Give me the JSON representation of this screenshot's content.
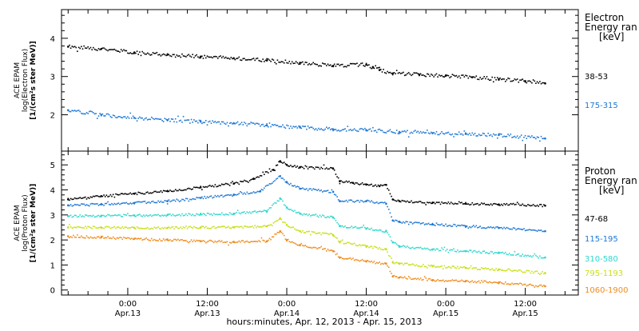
{
  "xaxis": {
    "title": "hours:minutes, Apr. 12, 2013 - Apr. 15, 2013",
    "ticks": [
      {
        "hour": 24,
        "time": "0:00",
        "date": "Apr.13"
      },
      {
        "hour": 36,
        "time": "12:00",
        "date": "Apr.13"
      },
      {
        "hour": 48,
        "time": "0:00",
        "date": "Apr.14"
      },
      {
        "hour": 60,
        "time": "12:00",
        "date": "Apr.14"
      },
      {
        "hour": 72,
        "time": "0:00",
        "date": "Apr.15"
      },
      {
        "hour": 84,
        "time": "12:00",
        "date": "Apr.15"
      }
    ]
  },
  "electron_panel": {
    "ylabel_lines": [
      "ACE EPAM",
      "log(Electron Flux)",
      "[1/(cm²s ster MeV)]"
    ],
    "legend_title_lines": [
      "Electron",
      "Energy ran",
      "[keV]"
    ],
    "yticks": [
      2,
      3,
      4
    ]
  },
  "proton_panel": {
    "ylabel_lines": [
      "ACE EPAM",
      "log(Proton Flux)",
      "[1/(cm²s ster MeV)]"
    ],
    "legend_title_lines": [
      "Proton",
      "Energy ran",
      "[keV]"
    ],
    "yticks": [
      0,
      1,
      2,
      3,
      4,
      5
    ]
  },
  "chart_data": [
    {
      "type": "scatter",
      "x_unit": "hours since Apr. 12, 2013 00:00",
      "xlim": [
        14,
        92
      ],
      "ylim": [
        1.05,
        4.75
      ],
      "series": [
        {
          "name": "38-53",
          "color": "#000000",
          "x": [
            15,
            20,
            25,
            30,
            35,
            40,
            45,
            50,
            55,
            60,
            61,
            62,
            64,
            68,
            72,
            76,
            80,
            84,
            87
          ],
          "y": [
            3.78,
            3.72,
            3.63,
            3.57,
            3.52,
            3.48,
            3.42,
            3.36,
            3.28,
            3.31,
            3.25,
            3.17,
            3.08,
            3.05,
            3.02,
            2.98,
            2.93,
            2.88,
            2.82
          ]
        },
        {
          "name": "175-315",
          "color": "#1f78d4",
          "x": [
            15,
            20,
            25,
            30,
            35,
            40,
            45,
            50,
            55,
            60,
            65,
            70,
            75,
            80,
            87
          ],
          "y": [
            2.12,
            2.0,
            1.92,
            1.86,
            1.82,
            1.78,
            1.72,
            1.67,
            1.62,
            1.6,
            1.55,
            1.52,
            1.5,
            1.47,
            1.38
          ]
        }
      ]
    },
    {
      "type": "scatter",
      "x_unit": "hours since Apr. 12, 2013 00:00",
      "xlim": [
        14,
        92
      ],
      "ylim": [
        -0.2,
        5.55
      ],
      "series": [
        {
          "name": "47-68",
          "color": "#000000",
          "x": [
            15,
            20,
            25,
            30,
            35,
            40,
            43,
            46,
            47,
            48,
            50,
            55,
            56,
            58,
            60,
            62,
            63,
            64,
            65,
            70,
            75,
            80,
            87
          ],
          "y": [
            3.62,
            3.75,
            3.85,
            3.95,
            4.1,
            4.25,
            4.45,
            4.8,
            5.15,
            5.0,
            4.9,
            4.85,
            4.35,
            4.28,
            4.22,
            4.15,
            4.2,
            3.62,
            3.55,
            3.48,
            3.45,
            3.42,
            3.37
          ]
        },
        {
          "name": "115-195",
          "color": "#1f78d4",
          "x": [
            15,
            20,
            25,
            30,
            35,
            40,
            44,
            47,
            48,
            50,
            55,
            56,
            60,
            63,
            64,
            65,
            70,
            75,
            80,
            87
          ],
          "y": [
            3.38,
            3.42,
            3.48,
            3.55,
            3.68,
            3.8,
            3.95,
            4.55,
            4.3,
            4.05,
            3.92,
            3.55,
            3.55,
            3.45,
            2.78,
            2.72,
            2.62,
            2.55,
            2.48,
            2.35
          ]
        },
        {
          "name": "310-580",
          "color": "#30d8cc",
          "x": [
            15,
            20,
            25,
            30,
            35,
            40,
            45,
            47,
            48,
            50,
            55,
            56,
            60,
            63,
            64,
            65,
            70,
            75,
            80,
            87
          ],
          "y": [
            2.95,
            2.97,
            2.98,
            3.0,
            3.02,
            3.05,
            3.15,
            3.65,
            3.3,
            3.05,
            2.9,
            2.55,
            2.45,
            2.35,
            1.9,
            1.75,
            1.62,
            1.55,
            1.48,
            1.3
          ]
        },
        {
          "name": "795-1193",
          "color": "#c8e01a",
          "x": [
            15,
            20,
            25,
            30,
            35,
            40,
            45,
            47,
            48,
            50,
            55,
            56,
            60,
            63,
            64,
            65,
            70,
            75,
            80,
            87
          ],
          "y": [
            2.5,
            2.5,
            2.48,
            2.48,
            2.5,
            2.5,
            2.55,
            2.85,
            2.6,
            2.35,
            2.2,
            1.92,
            1.75,
            1.62,
            1.1,
            1.05,
            0.95,
            0.88,
            0.82,
            0.68
          ]
        },
        {
          "name": "1060-1900",
          "color": "#f08c1e",
          "x": [
            15,
            20,
            25,
            30,
            35,
            40,
            45,
            47,
            48,
            50,
            55,
            56,
            60,
            63,
            64,
            65,
            70,
            75,
            80,
            87
          ],
          "y": [
            2.15,
            2.1,
            2.05,
            2.0,
            1.95,
            1.92,
            1.95,
            2.35,
            2.0,
            1.8,
            1.55,
            1.3,
            1.15,
            1.05,
            0.55,
            0.5,
            0.4,
            0.35,
            0.3,
            0.15
          ]
        }
      ]
    }
  ]
}
